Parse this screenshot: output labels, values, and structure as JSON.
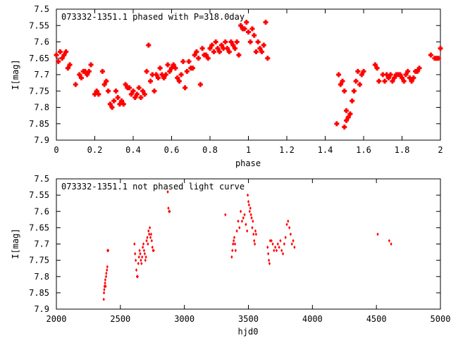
{
  "chart_data": [
    {
      "type": "scatter",
      "title": "073332-1351.1 phased with P=318.0day",
      "xlabel": "phase",
      "ylabel": "I[mag]",
      "xlim": [
        0,
        2
      ],
      "ylim": [
        7.5,
        7.9
      ],
      "y_inverted": true,
      "xticks": [
        "0",
        "0.2",
        "0.4",
        "0.6",
        "0.8",
        "1",
        "1.2",
        "1.4",
        "1.6",
        "1.8",
        "2"
      ],
      "yticks": [
        "7.5",
        "7.55",
        "7.6",
        "7.65",
        "7.7",
        "7.75",
        "7.8",
        "7.85",
        "7.9"
      ],
      "marker_color": "#ff0000",
      "marker": "cross-large",
      "series": [
        {
          "x": [
            0.0,
            0.01,
            0.02,
            0.03,
            0.04,
            0.05,
            0.06,
            0.07,
            0.1,
            0.12,
            0.13,
            0.14,
            0.15,
            0.16,
            0.17,
            0.18,
            0.2,
            0.21,
            0.22,
            0.24,
            0.25,
            0.26,
            0.27,
            0.28,
            0.29,
            0.3,
            0.31,
            0.32,
            0.33,
            0.34,
            0.35,
            0.36,
            0.37,
            0.38,
            0.39,
            0.4,
            0.41,
            0.42,
            0.43,
            0.44,
            0.45,
            0.46,
            0.47,
            0.48,
            0.49,
            0.5,
            0.51,
            0.52,
            0.53,
            0.54,
            0.55,
            0.56,
            0.57,
            0.58,
            0.59,
            0.6,
            0.61,
            0.62,
            0.63,
            0.64,
            0.65,
            0.66,
            0.67,
            0.68,
            0.69,
            0.7,
            0.71,
            0.72,
            0.73,
            0.74,
            0.75,
            0.76,
            0.77,
            0.78,
            0.79,
            0.8,
            0.81,
            0.82,
            0.83,
            0.84,
            0.85,
            0.86,
            0.87,
            0.88,
            0.89,
            0.9,
            0.91,
            0.92,
            0.93,
            0.94,
            0.95,
            0.96,
            0.97,
            0.98,
            0.99,
            1.0,
            1.01,
            1.02,
            1.03,
            1.04,
            1.05,
            1.06,
            1.07,
            1.08,
            1.09,
            1.1,
            1.46,
            1.47,
            1.48,
            1.49,
            1.5,
            1.5,
            1.51,
            1.51,
            1.52,
            1.53,
            1.54,
            1.55,
            1.56,
            1.57,
            1.58,
            1.59,
            1.6,
            1.66,
            1.67,
            1.68,
            1.7,
            1.71,
            1.72,
            1.73,
            1.74,
            1.75,
            1.76,
            1.77,
            1.78,
            1.79,
            1.8,
            1.81,
            1.82,
            1.83,
            1.84,
            1.85,
            1.86,
            1.87,
            1.88,
            1.89,
            1.95,
            1.97,
            1.98,
            1.99,
            2.0
          ],
          "y": [
            7.64,
            7.66,
            7.63,
            7.65,
            7.64,
            7.63,
            7.68,
            7.67,
            7.73,
            7.7,
            7.71,
            7.69,
            7.69,
            7.7,
            7.69,
            7.67,
            7.76,
            7.75,
            7.76,
            7.69,
            7.73,
            7.72,
            7.75,
            7.79,
            7.8,
            7.78,
            7.75,
            7.77,
            7.79,
            7.78,
            7.79,
            7.73,
            7.74,
            7.74,
            7.76,
            7.75,
            7.77,
            7.76,
            7.74,
            7.77,
            7.75,
            7.76,
            7.69,
            7.61,
            7.72,
            7.7,
            7.75,
            7.7,
            7.71,
            7.68,
            7.7,
            7.71,
            7.7,
            7.67,
            7.69,
            7.68,
            7.67,
            7.68,
            7.71,
            7.72,
            7.7,
            7.66,
            7.74,
            7.69,
            7.66,
            7.68,
            7.68,
            7.64,
            7.63,
            7.65,
            7.73,
            7.62,
            7.64,
            7.64,
            7.65,
            7.62,
            7.61,
            7.63,
            7.6,
            7.62,
            7.63,
            7.61,
            7.62,
            7.6,
            7.62,
            7.63,
            7.6,
            7.61,
            7.62,
            7.6,
            7.64,
            7.55,
            7.56,
            7.56,
            7.54,
            7.57,
            7.6,
            7.56,
            7.58,
            7.63,
            7.6,
            7.62,
            7.63,
            7.61,
            7.54,
            7.65,
            7.85,
            7.7,
            7.73,
            7.72,
            7.75,
            7.86,
            7.81,
            7.84,
            7.83,
            7.82,
            7.78,
            7.75,
            7.72,
            7.69,
            7.73,
            7.7,
            7.69,
            7.67,
            7.68,
            7.72,
            7.7,
            7.72,
            7.7,
            7.71,
            7.7,
            7.72,
            7.71,
            7.7,
            7.7,
            7.7,
            7.71,
            7.72,
            7.7,
            7.69,
            7.71,
            7.72,
            7.71,
            7.69,
            7.69,
            7.68,
            7.64,
            7.65,
            7.65,
            7.65,
            7.62
          ]
        }
      ]
    },
    {
      "type": "scatter",
      "title": "073332-1351.1 not phased light curve",
      "xlabel": "hjd0",
      "ylabel": "I[mag]",
      "xlim": [
        2000,
        5000
      ],
      "ylim": [
        7.5,
        7.9
      ],
      "y_inverted": true,
      "xticks": [
        "2000",
        "2500",
        "3000",
        "3500",
        "4000",
        "4500",
        "5000"
      ],
      "yticks": [
        "7.5",
        "7.55",
        "7.6",
        "7.65",
        "7.7",
        "7.75",
        "7.8",
        "7.85",
        "7.9"
      ],
      "marker_color": "#ff0000",
      "marker": "diamond-small",
      "series": [
        {
          "x": [
            2370,
            2372,
            2374,
            2376,
            2378,
            2380,
            2382,
            2385,
            2388,
            2390,
            2395,
            2398,
            2400,
            2405,
            2610,
            2615,
            2620,
            2625,
            2630,
            2635,
            2640,
            2645,
            2650,
            2655,
            2660,
            2665,
            2670,
            2675,
            2680,
            2685,
            2690,
            2695,
            2700,
            2705,
            2710,
            2715,
            2720,
            2725,
            2730,
            2735,
            2740,
            2745,
            2750,
            2755,
            2760,
            2870,
            2875,
            2880,
            2885,
            3320,
            3370,
            3375,
            3380,
            3385,
            3390,
            3395,
            3400,
            3410,
            3420,
            3430,
            3440,
            3450,
            3460,
            3470,
            3480,
            3490,
            3495,
            3500,
            3505,
            3510,
            3515,
            3520,
            3525,
            3530,
            3535,
            3540,
            3545,
            3550,
            3555,
            3560,
            3650,
            3655,
            3660,
            3665,
            3670,
            3680,
            3690,
            3700,
            3710,
            3720,
            3730,
            3740,
            3750,
            3760,
            3770,
            3780,
            3790,
            3800,
            3810,
            3820,
            3830,
            3840,
            3850,
            3860,
            4510,
            4600,
            4615
          ],
          "y": [
            7.87,
            7.85,
            7.84,
            7.83,
            7.83,
            7.82,
            7.81,
            7.83,
            7.8,
            7.79,
            7.78,
            7.77,
            7.72,
            7.72,
            7.7,
            7.73,
            7.75,
            7.78,
            7.8,
            7.8,
            7.76,
            7.74,
            7.72,
            7.73,
            7.75,
            7.76,
            7.74,
            7.71,
            7.7,
            7.72,
            7.73,
            7.75,
            7.74,
            7.69,
            7.68,
            7.7,
            7.66,
            7.67,
            7.65,
            7.68,
            7.67,
            7.69,
            7.71,
            7.72,
            7.72,
            7.54,
            7.59,
            7.6,
            7.6,
            7.61,
            7.74,
            7.72,
            7.7,
            7.69,
            7.68,
            7.7,
            7.72,
            7.66,
            7.63,
            7.65,
            7.6,
            7.63,
            7.62,
            7.61,
            7.64,
            7.66,
            7.55,
            7.57,
            7.58,
            7.6,
            7.59,
            7.61,
            7.62,
            7.65,
            7.63,
            7.67,
            7.69,
            7.7,
            7.66,
            7.67,
            7.71,
            7.73,
            7.75,
            7.76,
            7.69,
            7.69,
            7.7,
            7.72,
            7.71,
            7.72,
            7.7,
            7.71,
            7.69,
            7.72,
            7.73,
            7.7,
            7.68,
            7.64,
            7.63,
            7.65,
            7.67,
            7.7,
            7.69,
            7.71,
            7.67,
            7.69,
            7.7
          ]
        }
      ]
    }
  ]
}
